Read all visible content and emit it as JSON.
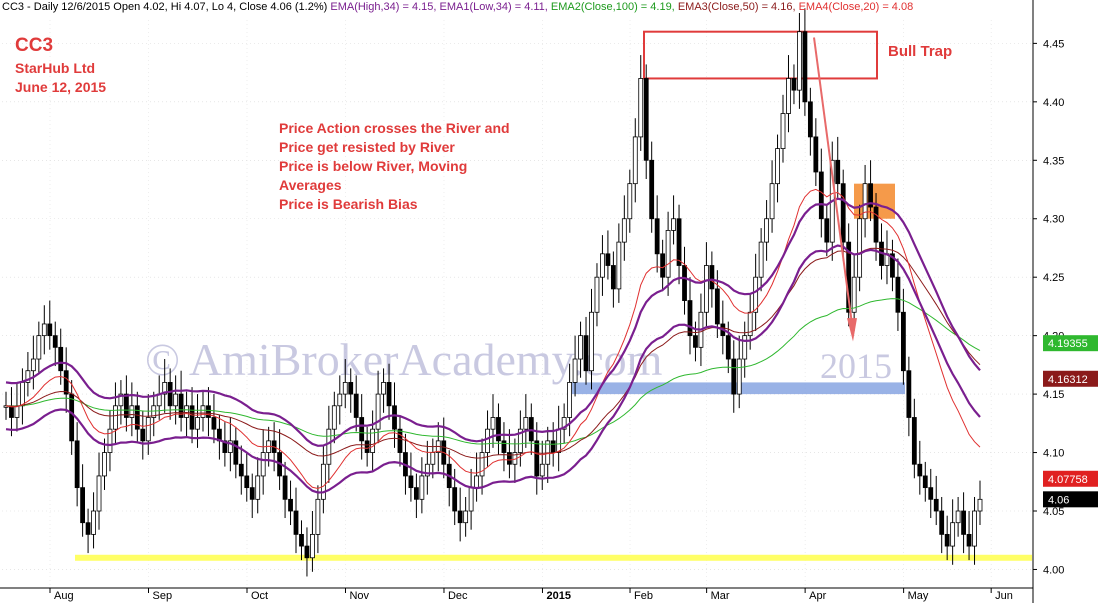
{
  "header": {
    "symbol_line": "CC3 - Daily 12/6/2015 Open 4.02, Hi 4.07, Lo 4, Close 4.06 (1.2%)",
    "ema_high": "EMA(High,34) = 4.15,",
    "ema1_low": "EMA1(Low,34) = 4.11,",
    "ema2": "EMA2(Close,100) = 4.19,",
    "ema3": "EMA3(Close,50) = 4.16,",
    "ema4": "EMA4(Close,20) = 4.08"
  },
  "title_block": {
    "ticker": "CC3",
    "company": "StarHub Ltd",
    "date": "June 12, 2015"
  },
  "annotation_lines": [
    "Price Action crosses the River and",
    "Price get resisted by River",
    "Price is below River, Moving",
    "Averages",
    "Price is Bearish Bias"
  ],
  "bull_trap_label": "Bull Trap",
  "watermark": "© AmiBrokerAcademy.com",
  "watermark_year": "2015",
  "colors": {
    "ema_high_low": "#7a1f8f",
    "ema2": "#2fb82f",
    "ema3": "#8b1a1a",
    "ema4": "#e03030",
    "annotation": "#e03b3b",
    "support": "#ffff66",
    "river_box": "#7f9fe0",
    "orange_box": "#f59a4a"
  },
  "chart_data": {
    "type": "candlestick",
    "y_axis": {
      "range": [
        3.985,
        4.47
      ],
      "ticks": [
        "4.00",
        "4.05",
        "4.10",
        "4.15",
        "4.20",
        "4.25",
        "4.30",
        "4.35",
        "4.40",
        "4.45"
      ]
    },
    "x_axis": {
      "ticks": [
        "Aug",
        "Sep",
        "Oct",
        "Nov",
        "Dec",
        "2015",
        "Feb",
        "Mar",
        "Apr",
        "May",
        "Jun"
      ]
    },
    "last_values": [
      {
        "label": "4.19355",
        "value": 4.19355,
        "color": "#2fb82f"
      },
      {
        "label": "4.16312",
        "value": 4.16312,
        "color": "#8b1a1a"
      },
      {
        "label": "4.07758",
        "value": 4.07758,
        "color": "#e02020"
      },
      {
        "label": "4.06",
        "value": 4.06,
        "color": "#000000"
      }
    ],
    "support_level": 4.01,
    "river_zone": [
      4.15,
      4.16
    ],
    "bull_trap_zone": [
      4.42,
      4.46
    ],
    "closes": [
      4.14,
      4.13,
      4.14,
      4.16,
      4.17,
      4.18,
      4.2,
      4.21,
      4.2,
      4.19,
      4.17,
      4.15,
      4.11,
      4.07,
      4.04,
      4.03,
      4.05,
      4.08,
      4.1,
      4.12,
      4.14,
      4.15,
      4.13,
      4.14,
      4.12,
      4.11,
      4.13,
      4.14,
      4.15,
      4.16,
      4.14,
      4.15,
      4.13,
      4.14,
      4.12,
      4.13,
      4.14,
      4.13,
      4.12,
      4.11,
      4.1,
      4.11,
      4.09,
      4.08,
      4.07,
      4.06,
      4.08,
      4.1,
      4.11,
      4.1,
      4.08,
      4.06,
      4.05,
      4.03,
      4.02,
      4.01,
      4.03,
      4.06,
      4.09,
      4.12,
      4.14,
      4.15,
      4.16,
      4.15,
      4.13,
      4.11,
      4.1,
      4.12,
      4.15,
      4.16,
      4.14,
      4.12,
      4.1,
      4.08,
      4.07,
      4.06,
      4.08,
      4.09,
      4.1,
      4.11,
      4.09,
      4.07,
      4.05,
      4.04,
      4.05,
      4.07,
      4.08,
      4.1,
      4.12,
      4.13,
      4.11,
      4.1,
      4.09,
      4.1,
      4.12,
      4.13,
      4.11,
      4.08,
      4.09,
      4.11,
      4.1,
      4.12,
      4.13,
      4.16,
      4.18,
      4.2,
      4.17,
      4.22,
      4.25,
      4.27,
      4.26,
      4.24,
      4.28,
      4.3,
      4.33,
      4.37,
      4.42,
      4.35,
      4.3,
      4.27,
      4.25,
      4.29,
      4.3,
      4.26,
      4.23,
      4.2,
      4.19,
      4.22,
      4.26,
      4.24,
      4.21,
      4.2,
      4.18,
      4.15,
      4.18,
      4.2,
      4.22,
      4.25,
      4.28,
      4.3,
      4.33,
      4.36,
      4.39,
      4.42,
      4.41,
      4.46,
      4.4,
      4.37,
      4.34,
      4.3,
      4.28,
      4.35,
      4.33,
      4.28,
      4.22,
      4.25,
      4.3,
      4.33,
      4.31,
      4.28,
      4.26,
      4.27,
      4.25,
      4.22,
      4.17,
      4.13,
      4.09,
      4.08,
      4.07,
      4.06,
      4.05,
      4.03,
      4.02,
      4.04,
      4.05,
      4.03,
      4.02,
      4.05,
      4.06
    ]
  }
}
